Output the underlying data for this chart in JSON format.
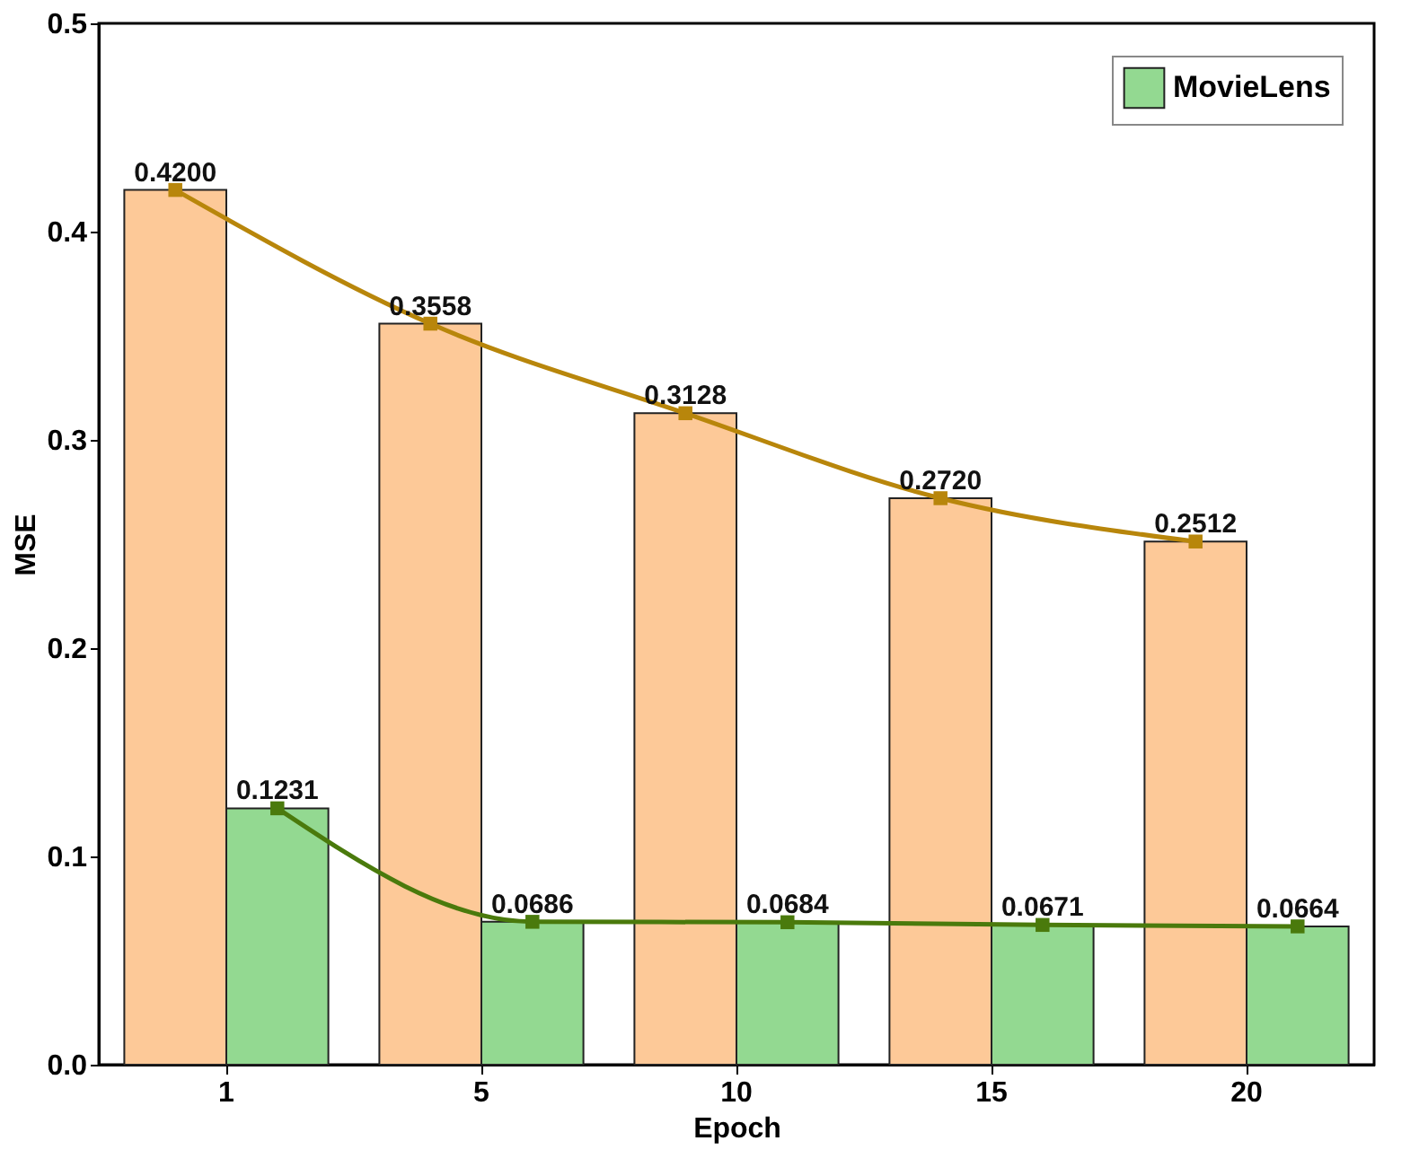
{
  "chart_data": {
    "type": "bar",
    "xlabel": "Epoch",
    "ylabel": "MSE",
    "categories": [
      "1",
      "5",
      "10",
      "15",
      "20"
    ],
    "series": [
      {
        "color": "#fdc998",
        "values": [
          0.42,
          0.3558,
          0.3128,
          0.272,
          0.2512
        ],
        "value_labels": [
          "0.4200",
          "0.3558",
          "0.3128",
          "0.2720",
          "0.2512"
        ]
      },
      {
        "name": "MovieLens",
        "color": "#93d991",
        "values": [
          0.1231,
          0.0686,
          0.0684,
          0.0671,
          0.0664
        ],
        "value_labels": [
          "0.1231",
          "0.0686",
          "0.0684",
          "0.0671",
          "0.0664"
        ]
      },
      {
        "type": "line",
        "color": "#b8860b",
        "values": [
          0.42,
          0.3558,
          0.3128,
          0.272,
          0.2512
        ]
      },
      {
        "type": "line",
        "color": "#4a7a0c",
        "values": [
          0.1231,
          0.0686,
          0.0684,
          0.0671,
          0.0664
        ]
      }
    ],
    "ylim": [
      0,
      0.5
    ],
    "yticks": [
      {
        "value": 0,
        "label": "0.0"
      },
      0.1,
      0.2,
      0.3,
      0.4,
      0.5
    ],
    "legend": "top right",
    "marker": "square",
    "grid": false
  }
}
